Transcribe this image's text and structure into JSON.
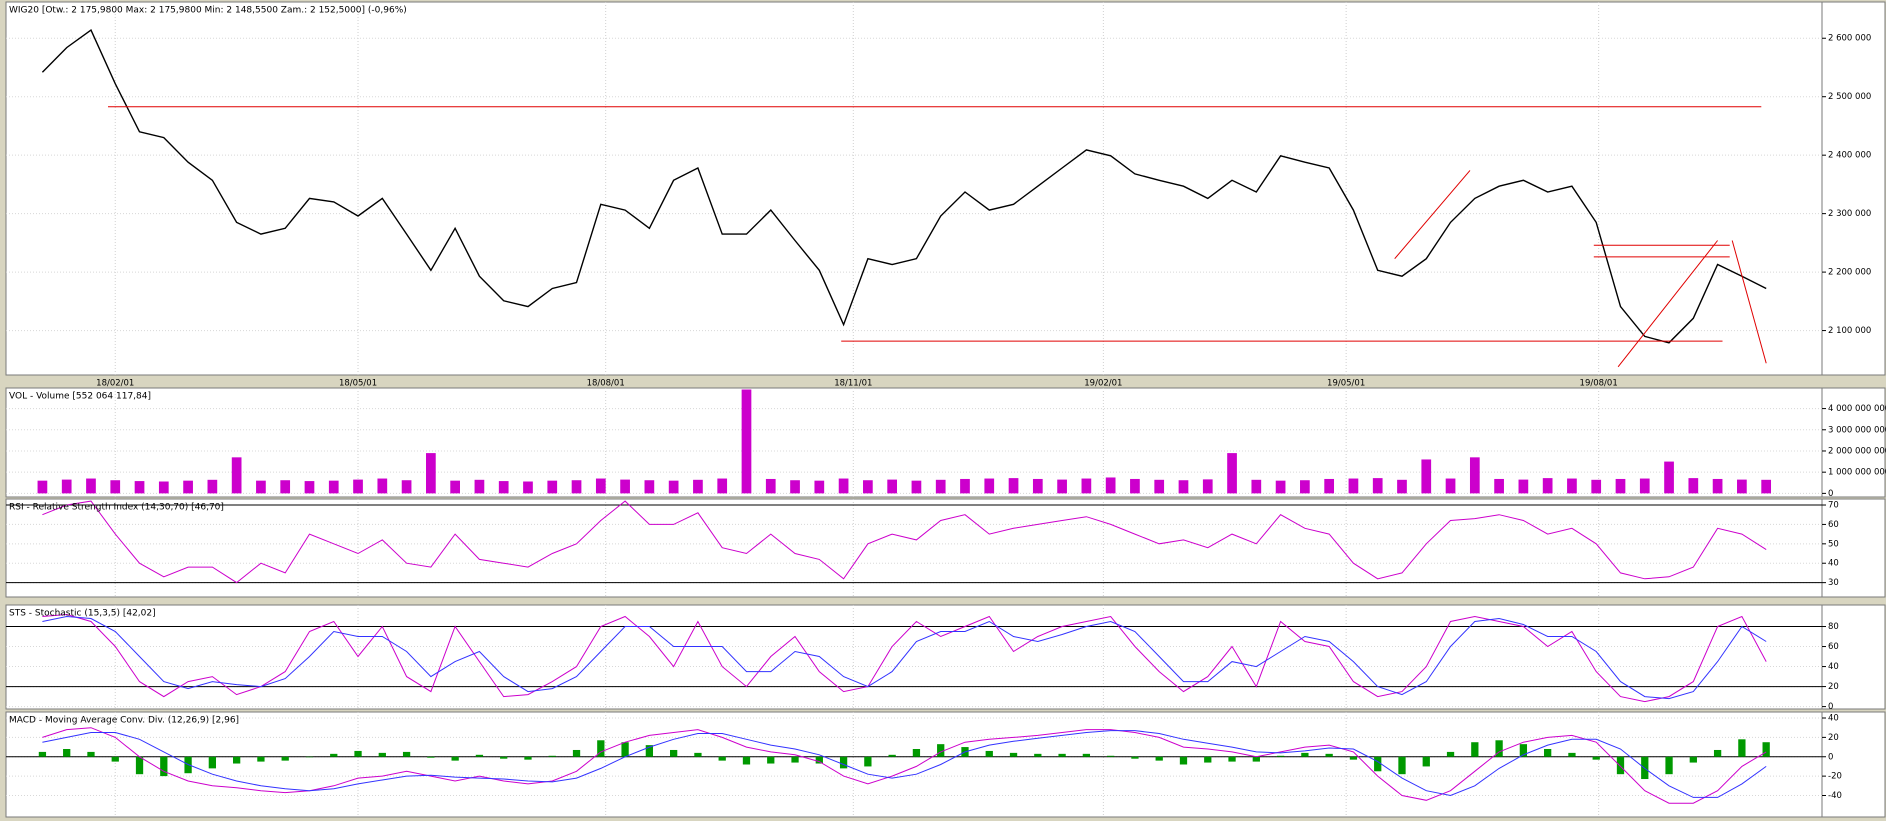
{
  "chart_data": [
    {
      "type": "line",
      "title": "WIG20 [Otw.: 2 175,9800  Max: 2 175,9800  Min: 2 148,5500  Zam.: 2 152,5000] (-0,96%)",
      "series": [
        {
          "color": "#000000",
          "values": [
            2542000,
            2584000,
            2614000,
            2522000,
            2440000,
            2430000,
            2388000,
            2357000,
            2285000,
            2265000,
            2275000,
            2326000,
            2320000,
            2296000,
            2326000,
            2265000,
            2203000,
            2275000,
            2193000,
            2151000,
            2141000,
            2172000,
            2182000,
            2316000,
            2306000,
            2275000,
            2357000,
            2378000,
            2265000,
            2265000,
            2306000,
            2254000,
            2203000,
            2110000,
            2223000,
            2213000,
            2223000,
            2296000,
            2337000,
            2306000,
            2316000,
            2347000,
            2378000,
            2409000,
            2399000,
            2368000,
            2357000,
            2347000,
            2326000,
            2357000,
            2337000,
            2399000,
            2388000,
            2378000,
            2306000,
            2203000,
            2193000,
            2223000,
            2285000,
            2326000,
            2347000,
            2357000,
            2337000,
            2347000,
            2285000,
            2141000,
            2090000,
            2079000,
            2121000,
            2213000,
            2193000,
            2172000
          ]
        }
      ],
      "xlim": [
        -1.5,
        73.3
      ],
      "xticks": [
        {
          "value": 3,
          "label": "18/02/01"
        },
        {
          "value": 13,
          "label": "18/05/01"
        },
        {
          "value": 23.2,
          "label": "18/08/01"
        },
        {
          "value": 33.4,
          "label": "18/11/01"
        },
        {
          "value": 43.7,
          "label": "19/02/01"
        },
        {
          "value": 53.7,
          "label": "19/05/01"
        },
        {
          "value": 64.1,
          "label": "19/08/01"
        }
      ],
      "ylim": [
        2024000,
        2662000
      ],
      "yticks": [
        {
          "value": 2100000,
          "label": "2 100 000"
        },
        {
          "value": 2200000,
          "label": "2 200 000"
        },
        {
          "value": 2300000,
          "label": "2 300 000"
        },
        {
          "value": 2400000,
          "label": "2 400 000"
        },
        {
          "value": 2500000,
          "label": "2 500 000"
        },
        {
          "value": 2600000,
          "label": "2 600 000"
        }
      ],
      "grid": true,
      "lines": [
        {
          "color": "#e00000",
          "x": [
            2.7,
            70.8
          ],
          "y": [
            2483000,
            2483000
          ]
        },
        {
          "color": "#e00000",
          "x": [
            32.9,
            69.2
          ],
          "y": [
            2082000,
            2082000
          ]
        },
        {
          "color": "#e00000",
          "x": [
            63.9,
            69.5
          ],
          "y": [
            2246000,
            2246000
          ]
        },
        {
          "color": "#e00000",
          "x": [
            63.9,
            69.5
          ],
          "y": [
            2226000,
            2226000
          ]
        },
        {
          "color": "#e00000",
          "x": [
            55.7,
            58.8
          ],
          "y": [
            2223000,
            2374000
          ]
        },
        {
          "color": "#e00000",
          "x": [
            64.9,
            69.0
          ],
          "y": [
            2038000,
            2254000
          ]
        },
        {
          "color": "#e00000",
          "x": [
            69.6,
            71.0
          ],
          "y": [
            2254000,
            2044000
          ]
        }
      ]
    },
    {
      "type": "bar",
      "title": "VOL - Volume [552 064 117,84]",
      "color": "#cc00cc",
      "values": [
        600000000,
        650000000,
        700000000,
        620000000,
        580000000,
        560000000,
        600000000,
        640000000,
        1700000000,
        600000000,
        620000000,
        580000000,
        600000000,
        650000000,
        700000000,
        620000000,
        1900000000,
        600000000,
        640000000,
        580000000,
        560000000,
        600000000,
        620000000,
        700000000,
        650000000,
        620000000,
        600000000,
        640000000,
        700000000,
        4900000000,
        680000000,
        620000000,
        600000000,
        700000000,
        620000000,
        650000000,
        600000000,
        640000000,
        680000000,
        700000000,
        720000000,
        680000000,
        650000000,
        700000000,
        750000000,
        680000000,
        640000000,
        620000000,
        660000000,
        1900000000,
        640000000,
        600000000,
        620000000,
        680000000,
        700000000,
        720000000,
        640000000,
        1600000000,
        700000000,
        1700000000,
        680000000,
        650000000,
        720000000,
        700000000,
        640000000,
        680000000,
        700000000,
        1500000000,
        720000000,
        680000000,
        650000000,
        640000000
      ],
      "ylim": [
        -171000000,
        4971000000
      ],
      "yticks": [
        0,
        {
          "value": 1000000000,
          "label": "1 000 000 000"
        },
        {
          "value": 2000000000,
          "label": "2 000 000 000"
        },
        {
          "value": 3000000000,
          "label": "3 000 000 000"
        },
        {
          "value": 4000000000,
          "label": "4 000 000 000"
        }
      ],
      "grid": true
    },
    {
      "type": "line",
      "title": "RSI - Relative Strength Index (14,30,70) [46,70]",
      "series": [
        {
          "color": "#cc00cc",
          "values": [
            65,
            70,
            72,
            55,
            40,
            33,
            38,
            38,
            30,
            40,
            35,
            55,
            50,
            45,
            52,
            40,
            38,
            55,
            42,
            40,
            38,
            45,
            50,
            62,
            72,
            60,
            60,
            66,
            48,
            45,
            55,
            45,
            42,
            32,
            50,
            55,
            52,
            62,
            65,
            55,
            58,
            60,
            62,
            64,
            60,
            55,
            50,
            52,
            48,
            55,
            50,
            65,
            58,
            55,
            40,
            32,
            35,
            50,
            62,
            63,
            65,
            62,
            55,
            58,
            50,
            35,
            32,
            33,
            38,
            58,
            55,
            47
          ]
        }
      ],
      "ylim": [
        22.6,
        73.1
      ],
      "yticks": [
        30,
        40,
        50,
        60,
        70
      ],
      "levels": [
        30,
        70
      ],
      "grid": true
    },
    {
      "type": "line",
      "title": "STS - Stochastic (15,3,5) [42,02]",
      "series": [
        {
          "color": "#cc00cc",
          "values": [
            90,
            92,
            85,
            60,
            25,
            10,
            25,
            30,
            12,
            20,
            35,
            75,
            85,
            50,
            80,
            30,
            15,
            80,
            45,
            10,
            12,
            25,
            40,
            80,
            90,
            70,
            40,
            85,
            40,
            20,
            50,
            70,
            35,
            15,
            20,
            60,
            85,
            70,
            80,
            90,
            55,
            70,
            80,
            85,
            90,
            60,
            35,
            15,
            30,
            60,
            20,
            85,
            65,
            60,
            25,
            10,
            15,
            40,
            85,
            90,
            85,
            80,
            60,
            75,
            35,
            10,
            5,
            10,
            25,
            80,
            90,
            45
          ]
        },
        {
          "color": "#3333ff",
          "values": [
            85,
            90,
            88,
            75,
            50,
            25,
            18,
            25,
            22,
            20,
            28,
            50,
            75,
            70,
            70,
            55,
            30,
            45,
            55,
            30,
            15,
            18,
            30,
            55,
            80,
            80,
            60,
            60,
            60,
            35,
            35,
            55,
            50,
            30,
            20,
            35,
            65,
            75,
            75,
            85,
            70,
            65,
            72,
            80,
            85,
            75,
            50,
            25,
            25,
            45,
            40,
            55,
            70,
            65,
            45,
            20,
            12,
            25,
            60,
            85,
            88,
            82,
            70,
            70,
            55,
            25,
            10,
            8,
            15,
            45,
            80,
            65
          ]
        }
      ],
      "ylim": [
        -2.4,
        101.5
      ],
      "yticks": [
        0,
        20,
        40,
        60,
        80
      ],
      "levels": [
        20,
        80
      ],
      "grid": true
    },
    {
      "type": "line",
      "title": "MACD - Moving Average Conv. Div. (12,26,9) [2,96]",
      "histogram": {
        "color": "#009900",
        "values": [
          5,
          8,
          5,
          -5,
          -18,
          -20,
          -17,
          -12,
          -7,
          -5,
          -4,
          0,
          3,
          6,
          4,
          5,
          -1,
          -4,
          2,
          -2,
          -3,
          1,
          7,
          17,
          15,
          12,
          7,
          4,
          -4,
          -8,
          -7,
          -6,
          -7,
          -12,
          -10,
          2,
          8,
          13,
          10,
          6,
          4,
          3,
          3,
          3,
          1,
          -2,
          -4,
          -8,
          -6,
          -5,
          -5,
          1,
          4,
          3,
          -3,
          -15,
          -18,
          -10,
          5,
          15,
          17,
          13,
          8,
          4,
          -3,
          -18,
          -23,
          -18,
          -6,
          7,
          18,
          15
        ]
      },
      "series": [
        {
          "color": "#cc00cc",
          "values": [
            20,
            28,
            30,
            20,
            0,
            -15,
            -25,
            -30,
            -32,
            -35,
            -37,
            -35,
            -30,
            -22,
            -20,
            -15,
            -20,
            -25,
            -20,
            -25,
            -28,
            -25,
            -15,
            5,
            15,
            22,
            25,
            28,
            20,
            10,
            5,
            2,
            -5,
            -20,
            -28,
            -20,
            -10,
            5,
            15,
            18,
            20,
            22,
            25,
            28,
            28,
            25,
            20,
            10,
            8,
            5,
            0,
            5,
            10,
            12,
            5,
            -20,
            -40,
            -45,
            -35,
            -15,
            5,
            15,
            20,
            22,
            15,
            -10,
            -35,
            -48,
            -48,
            -35,
            -10,
            5
          ]
        },
        {
          "color": "#3333ff",
          "values": [
            15,
            20,
            25,
            25,
            18,
            5,
            -8,
            -18,
            -25,
            -30,
            -33,
            -35,
            -33,
            -28,
            -24,
            -20,
            -19,
            -21,
            -22,
            -23,
            -25,
            -26,
            -22,
            -12,
            0,
            10,
            18,
            24,
            24,
            18,
            12,
            8,
            2,
            -8,
            -18,
            -22,
            -18,
            -8,
            5,
            12,
            16,
            19,
            22,
            25,
            27,
            27,
            24,
            18,
            14,
            10,
            5,
            4,
            6,
            9,
            8,
            -5,
            -22,
            -35,
            -40,
            -30,
            -12,
            2,
            12,
            18,
            18,
            8,
            -12,
            -30,
            -42,
            -42,
            -28,
            -10
          ]
        }
      ],
      "ylim": [
        -62.2,
        46.2
      ],
      "yticks": [
        -40,
        -20,
        0,
        20,
        40
      ],
      "levels": [
        0
      ],
      "grid": true
    }
  ]
}
